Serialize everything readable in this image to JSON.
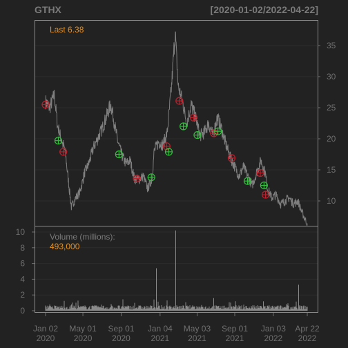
{
  "chart_data": {
    "type": "line",
    "title": "GTHX",
    "date_range": "[2020-01-02/2022-04-22]",
    "last_label": "Last 6.38",
    "volume_label": "Volume (millions):",
    "volume_value": "493,000",
    "grid": true,
    "price_axis": {
      "ylim": [
        6,
        39
      ],
      "ticks": [
        10,
        15,
        20,
        25,
        30,
        35
      ],
      "tick_labels": [
        "10",
        "15",
        "20",
        "25",
        "30",
        "35"
      ],
      "side": "right"
    },
    "volume_axis": {
      "ylim": [
        0,
        10
      ],
      "ticks": [
        0,
        2,
        4,
        6,
        8,
        10
      ],
      "tick_labels": [
        "0",
        "2",
        "4",
        "6",
        "8",
        "10"
      ],
      "side": "left"
    },
    "x_range": [
      "2020-01-02",
      "2022-04-22"
    ],
    "x_ticks": [
      {
        "date": "2020-01-02",
        "line1": "Jan 02",
        "line2": "2020"
      },
      {
        "date": "2020-05-01",
        "line1": "May 01",
        "line2": "2020"
      },
      {
        "date": "2020-09-01",
        "line1": "Sep 01",
        "line2": "2020"
      },
      {
        "date": "2021-01-04",
        "line1": "Jan 04",
        "line2": "2021"
      },
      {
        "date": "2021-05-03",
        "line1": "May 03",
        "line2": "2021"
      },
      {
        "date": "2021-09-01",
        "line1": "Sep 01",
        "line2": "2021"
      },
      {
        "date": "2022-01-03",
        "line1": "Jan 03",
        "line2": "2022"
      },
      {
        "date": "2022-04-22",
        "line1": "Apr 22",
        "line2": "2022"
      }
    ],
    "price_series": {
      "color": "#7f7f7f",
      "points": [
        [
          "2020-01-02",
          26.0
        ],
        [
          "2020-01-15",
          25.0
        ],
        [
          "2020-01-30",
          27.0
        ],
        [
          "2020-02-10",
          22.0
        ],
        [
          "2020-02-24",
          19.5
        ],
        [
          "2020-03-05",
          18.0
        ],
        [
          "2020-03-18",
          12.0
        ],
        [
          "2020-03-25",
          9.0
        ],
        [
          "2020-04-08",
          10.5
        ],
        [
          "2020-04-22",
          11.5
        ],
        [
          "2020-05-06",
          14.5
        ],
        [
          "2020-05-20",
          16.0
        ],
        [
          "2020-06-03",
          18.5
        ],
        [
          "2020-06-17",
          20.0
        ],
        [
          "2020-07-01",
          21.5
        ],
        [
          "2020-07-15",
          23.5
        ],
        [
          "2020-07-29",
          25.5
        ],
        [
          "2020-08-05",
          24.0
        ],
        [
          "2020-08-19",
          20.0
        ],
        [
          "2020-09-02",
          17.5
        ],
        [
          "2020-09-16",
          16.0
        ],
        [
          "2020-09-30",
          16.5
        ],
        [
          "2020-10-14",
          13.5
        ],
        [
          "2020-10-28",
          13.5
        ],
        [
          "2020-11-11",
          14.0
        ],
        [
          "2020-11-25",
          12.0
        ],
        [
          "2020-12-09",
          13.5
        ],
        [
          "2020-12-16",
          18.0
        ],
        [
          "2020-12-30",
          19.5
        ],
        [
          "2021-01-13",
          19.0
        ],
        [
          "2021-01-27",
          21.0
        ],
        [
          "2021-02-10",
          28.5
        ],
        [
          "2021-02-17",
          34.0
        ],
        [
          "2021-02-22",
          37.0
        ],
        [
          "2021-03-03",
          28.5
        ],
        [
          "2021-03-17",
          26.0
        ],
        [
          "2021-03-31",
          22.5
        ],
        [
          "2021-04-14",
          25.5
        ],
        [
          "2021-04-28",
          23.5
        ],
        [
          "2021-05-12",
          20.5
        ],
        [
          "2021-05-26",
          21.0
        ],
        [
          "2021-06-09",
          22.5
        ],
        [
          "2021-06-23",
          20.5
        ],
        [
          "2021-07-07",
          23.5
        ],
        [
          "2021-07-21",
          21.5
        ],
        [
          "2021-08-04",
          19.0
        ],
        [
          "2021-08-18",
          17.0
        ],
        [
          "2021-09-01",
          15.5
        ],
        [
          "2021-09-15",
          14.0
        ],
        [
          "2021-09-29",
          15.5
        ],
        [
          "2021-10-13",
          14.0
        ],
        [
          "2021-10-27",
          12.5
        ],
        [
          "2021-11-10",
          14.5
        ],
        [
          "2021-11-24",
          16.5
        ],
        [
          "2021-12-08",
          14.5
        ],
        [
          "2021-12-15",
          12.0
        ],
        [
          "2021-12-29",
          10.5
        ],
        [
          "2022-01-12",
          11.0
        ],
        [
          "2022-01-26",
          9.5
        ],
        [
          "2022-02-09",
          10.0
        ],
        [
          "2022-02-23",
          10.5
        ],
        [
          "2022-03-09",
          9.5
        ],
        [
          "2022-03-23",
          10.0
        ],
        [
          "2022-04-06",
          8.0
        ],
        [
          "2022-04-22",
          6.38
        ]
      ]
    },
    "buy_markers": {
      "color": "#2fc23a",
      "points": [
        [
          "2020-02-12",
          19.7
        ],
        [
          "2020-08-25",
          17.5
        ],
        [
          "2020-12-07",
          13.8
        ],
        [
          "2021-02-01",
          17.9
        ],
        [
          "2021-03-20",
          22.0
        ],
        [
          "2021-05-04",
          20.6
        ],
        [
          "2021-07-09",
          21.2
        ],
        [
          "2021-10-12",
          13.2
        ],
        [
          "2021-12-04",
          12.5
        ]
      ]
    },
    "sell_markers": {
      "color": "#c0202c",
      "points": [
        [
          "2020-01-02",
          25.5
        ],
        [
          "2020-02-28",
          17.9
        ],
        [
          "2020-10-21",
          13.6
        ],
        [
          "2021-01-25",
          18.8
        ],
        [
          "2021-03-07",
          26.1
        ],
        [
          "2021-04-22",
          23.4
        ],
        [
          "2021-06-26",
          20.9
        ],
        [
          "2021-08-22",
          16.9
        ],
        [
          "2021-11-22",
          14.5
        ],
        [
          "2021-12-09",
          11.0
        ]
      ]
    },
    "volume_series": {
      "color": "#8a8a8a",
      "spikes": [
        [
          "2020-03-25",
          0.8
        ],
        [
          "2020-12-21",
          5.4
        ],
        [
          "2021-02-22",
          10.2
        ],
        [
          "2021-06-25",
          1.6
        ],
        [
          "2021-11-30",
          1.2
        ],
        [
          "2022-03-24",
          3.3
        ]
      ]
    }
  }
}
